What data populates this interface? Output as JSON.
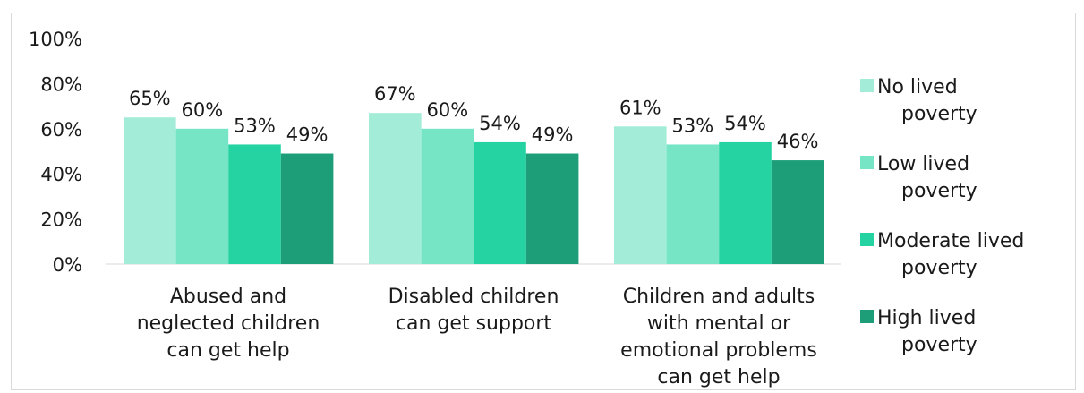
{
  "chart_data": {
    "type": "bar",
    "categories": [
      [
        "Abused and",
        "neglected children",
        "can get help"
      ],
      [
        "Disabled children",
        "can get support"
      ],
      [
        "Children and adults",
        "with mental or",
        "emotional problems",
        "can get help"
      ]
    ],
    "series": [
      {
        "name": [
          "No lived",
          "poverty"
        ],
        "color": "#a3ecd8",
        "values": [
          65,
          67,
          61
        ]
      },
      {
        "name": [
          "Low lived",
          "poverty"
        ],
        "color": "#76e5c6",
        "values": [
          60,
          60,
          53
        ]
      },
      {
        "name": [
          "Moderate lived",
          "poverty"
        ],
        "color": "#25d3a2",
        "values": [
          53,
          54,
          54
        ]
      },
      {
        "name": [
          "High lived",
          "poverty"
        ],
        "color": "#1d9e79",
        "values": [
          49,
          49,
          46
        ]
      }
    ],
    "value_suffix": "%",
    "y_ticks": [
      "0%",
      "20%",
      "40%",
      "60%",
      "80%",
      "100%"
    ],
    "ylim": [
      0,
      100
    ],
    "grid": false,
    "legend_position": "right"
  }
}
